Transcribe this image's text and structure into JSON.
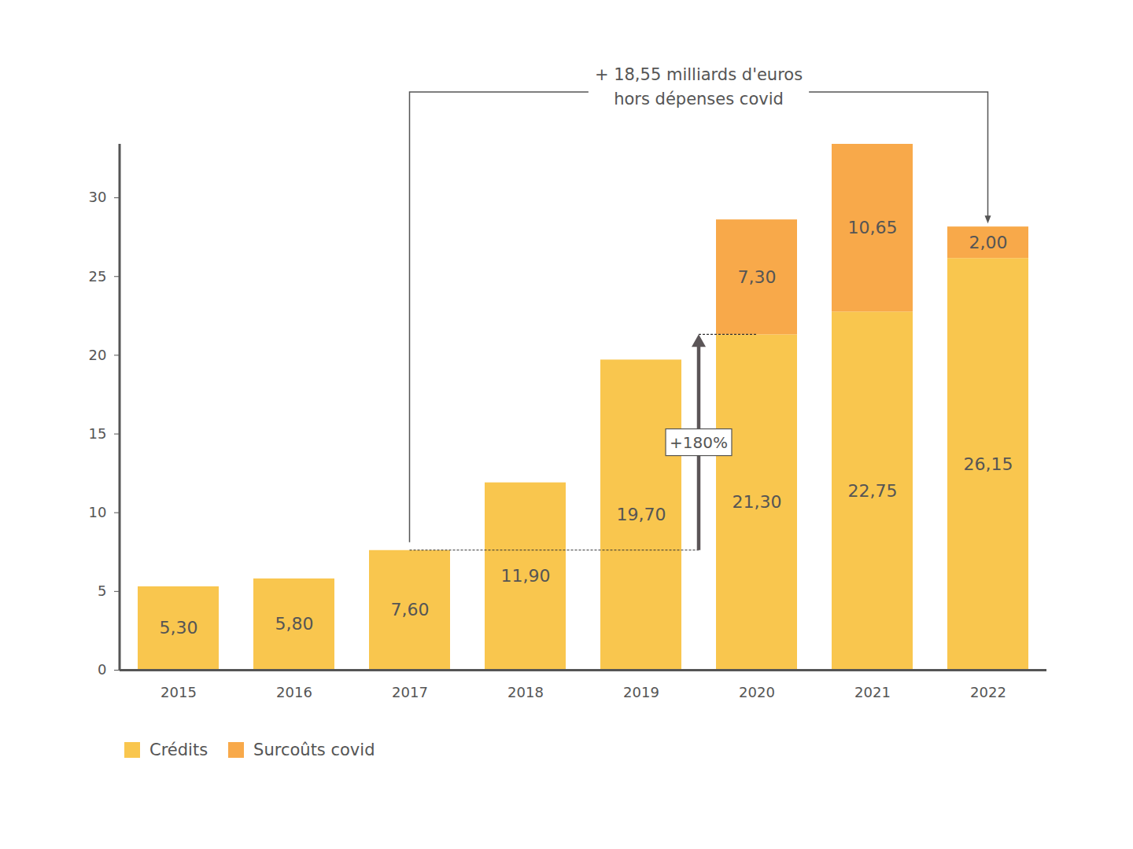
{
  "chart_data": {
    "type": "bar",
    "stacked": true,
    "data_labels": true,
    "legend": "bottom-left",
    "categories": [
      "2015",
      "2016",
      "2017",
      "2018",
      "2019",
      "2020",
      "2021",
      "2022"
    ],
    "series": [
      {
        "name": "Crédits",
        "color": "#F9C64E",
        "values": [
          5.3,
          5.8,
          7.6,
          11.9,
          19.7,
          21.3,
          22.75,
          26.15
        ],
        "value_labels": [
          "5,30",
          "5,80",
          "7,60",
          "11,90",
          "19,70",
          "21,30",
          "22,75",
          "26,15"
        ]
      },
      {
        "name": "Surcoûts covid",
        "color": "#F8A94A",
        "values": [
          null,
          null,
          null,
          null,
          null,
          7.3,
          10.65,
          2.0
        ],
        "value_labels": [
          null,
          null,
          null,
          null,
          null,
          "7,30",
          "10,65",
          "2,00"
        ]
      }
    ],
    "ylim": [
      0,
      33.4
    ],
    "yticks": [
      0,
      5,
      10,
      15,
      20,
      25,
      30
    ],
    "annotations": [
      {
        "text": [
          "+ 18,55 milliards d'euros",
          "hors dépenses covid"
        ],
        "from": "2017",
        "to": "2022"
      },
      {
        "text": "+180%",
        "from": "2017",
        "to": "2020"
      }
    ]
  }
}
